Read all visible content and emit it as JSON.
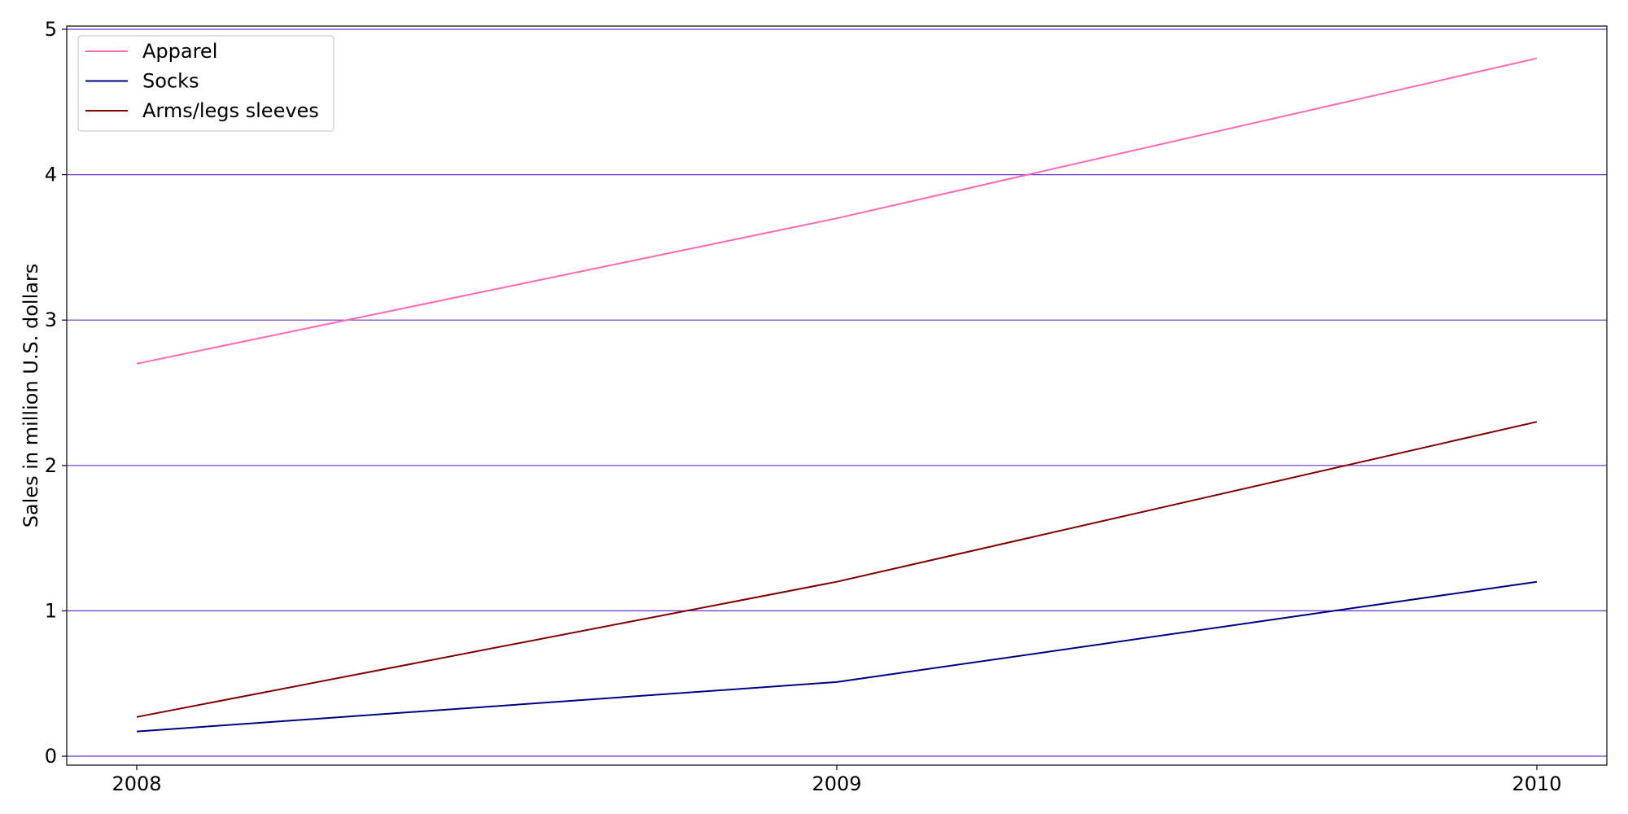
{
  "chart_data": {
    "type": "line",
    "title": "",
    "xlabel": "",
    "ylabel": "Sales in million U.S. dollars",
    "x": [
      "2008",
      "2009",
      "2010"
    ],
    "ylim": [
      0,
      5
    ],
    "yticks": [
      "0",
      "1",
      "2",
      "3",
      "4",
      "5"
    ],
    "grid": "horizontal",
    "legend_position": "top-left",
    "grid_color": "#6633cc",
    "series": [
      {
        "name": "Apparel",
        "values": [
          2.7,
          3.7,
          4.8
        ],
        "color": "#ff69b4"
      },
      {
        "name": "Socks",
        "values": [
          0.17,
          0.51,
          1.2
        ],
        "color": "#000080"
      },
      {
        "name": "Arms/legs sleeves",
        "values": [
          0.27,
          1.2,
          2.3
        ],
        "color": "#800000"
      }
    ]
  }
}
